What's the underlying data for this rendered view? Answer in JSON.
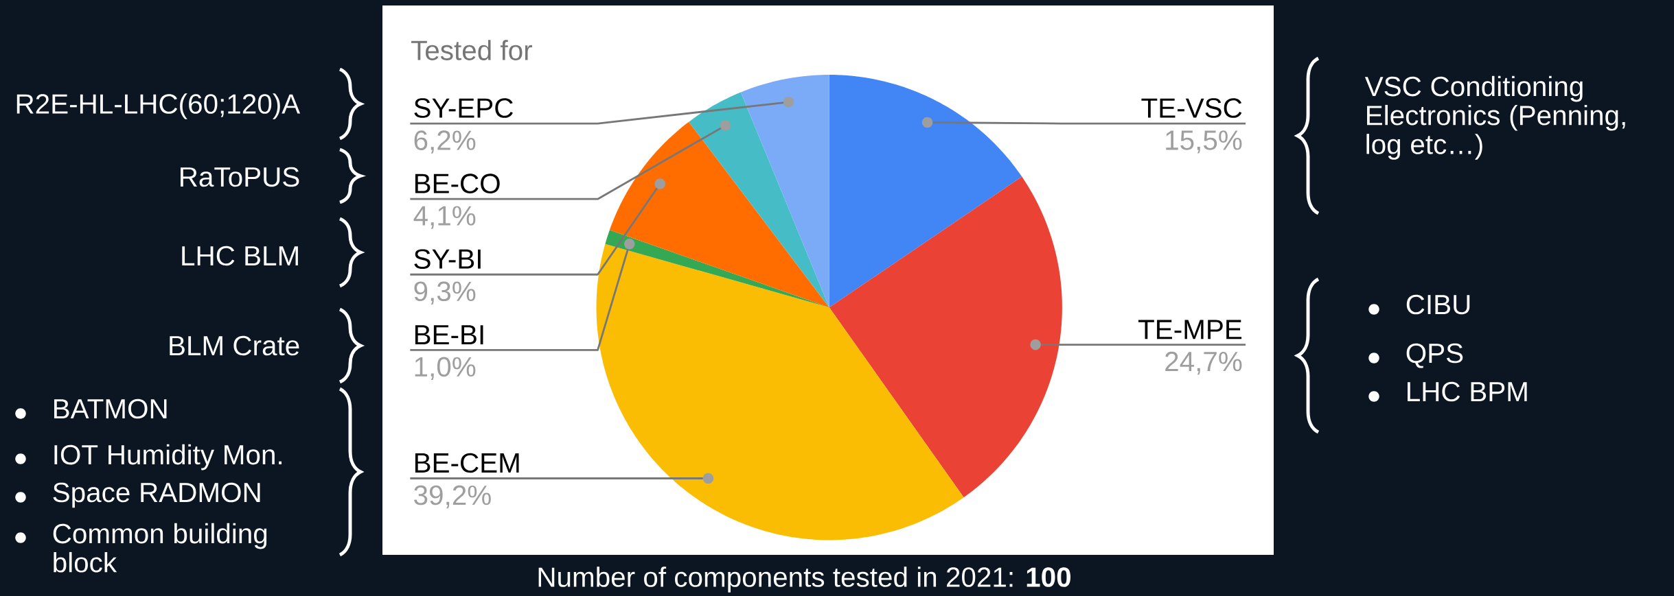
{
  "chart_data": {
    "type": "pie",
    "title": "Tested for",
    "categories": [
      "TE-VSC",
      "TE-MPE",
      "BE-CEM",
      "BE-BI",
      "SY-BI",
      "BE-CO",
      "SY-EPC"
    ],
    "values": [
      15.5,
      24.7,
      39.2,
      1.0,
      9.3,
      4.1,
      6.2
    ],
    "colors": [
      "#4285f4",
      "#ea4335",
      "#fbbc04",
      "#34a853",
      "#ff6d01",
      "#46bdc6",
      "#7baaf7"
    ],
    "value_labels": [
      "15,5%",
      "24,7%",
      "39,2%",
      "1,0%",
      "9,3%",
      "4,1%",
      "6,2%"
    ],
    "annotations": [
      "R2E-HL-LHC(60;120)A",
      "RaToPUS",
      "LHC BLM",
      "BLM Crate",
      "BATMON",
      "IOT Humidity Mon.",
      "Space RADMON",
      "Common building block",
      "VSC Conditioning Electronics (Penning, log etc…)",
      "CIBU",
      "QPS",
      "LHC BPM",
      "Number of components tested in 2021: **100**"
    ]
  }
}
